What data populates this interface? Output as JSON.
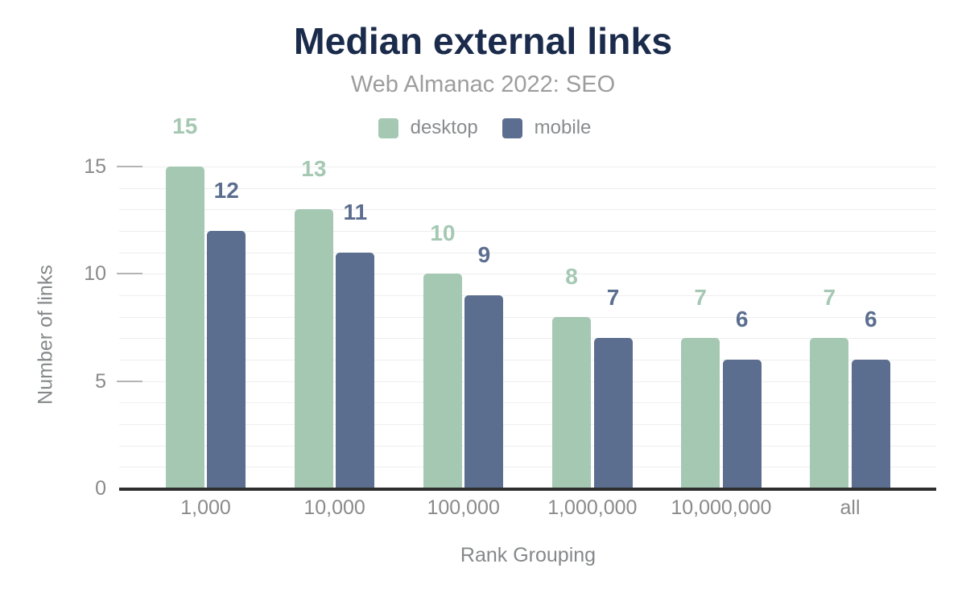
{
  "chart_data": {
    "type": "bar",
    "title": "Median external links",
    "subtitle": "Web Almanac 2022: SEO",
    "xlabel": "Rank Grouping",
    "ylabel": "Number of links",
    "categories": [
      "1,000",
      "10,000",
      "100,000",
      "1,000,000",
      "10,000,000",
      "all"
    ],
    "series": [
      {
        "name": "desktop",
        "color": "#a5c8b3",
        "values": [
          15,
          13,
          10,
          8,
          7,
          7
        ]
      },
      {
        "name": "mobile",
        "color": "#5c6e8f",
        "values": [
          12,
          11,
          9,
          7,
          6,
          6
        ]
      }
    ],
    "ylim": [
      0,
      15
    ],
    "yticks": [
      0,
      5,
      10,
      15
    ],
    "grid": "horizontal minor every 1, labeled ticks every 5",
    "legend_position": "top-center"
  },
  "colors": {
    "title": "#1b2b4b",
    "subtitle": "#9d9d9d",
    "axis_text": "#8a8a8a",
    "axis_title": "#85888a",
    "legend_text": "#898c8e",
    "gridline": "#eeeeee",
    "tick": "#b4b4b4",
    "axis_line": "#2f2f2f",
    "background": "#ffffff"
  }
}
